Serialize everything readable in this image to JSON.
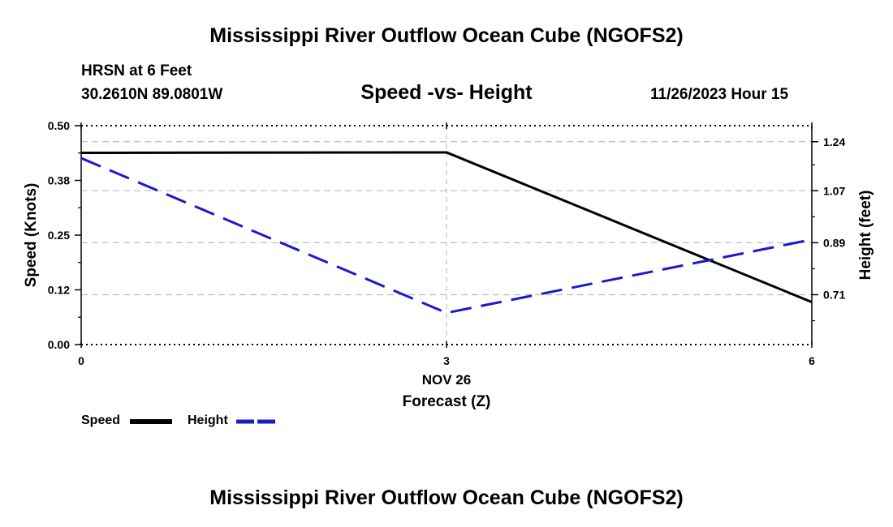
{
  "title": "Mississippi River Outflow Ocean Cube (NGOFS2)",
  "station": "HRSN at 6 Feet",
  "coordinates": "30.2610N  89.0801W",
  "datetime": "11/26/2023 Hour 15",
  "colors": {
    "speed": "#000000",
    "height": "#1a1acc",
    "grid": "#bdbdbd"
  },
  "chart_data": {
    "type": "line",
    "title": "Speed -vs- Height",
    "xlabel": "Forecast (Z)",
    "x_date_label": "NOV 26",
    "x": [
      0,
      3,
      6
    ],
    "xlim": [
      0,
      6
    ],
    "xticks": [
      "0",
      "3",
      "6"
    ],
    "ylabel_left": "Speed (Knots)",
    "ylim_left": [
      0,
      0.5
    ],
    "yticks_left": [
      "0.00",
      "0.12",
      "0.25",
      "0.38",
      "0.50"
    ],
    "ylabel_right": "Height (feet)",
    "ylim_right": [
      0.5372,
      1.2955
    ],
    "yticks_right": [
      {
        "value": 0.71,
        "label": "0.71"
      },
      {
        "value": 0.89,
        "label": "0.89"
      },
      {
        "value": 1.07,
        "label": "1.07"
      },
      {
        "value": 1.24,
        "label": "1.24"
      }
    ],
    "grid": true,
    "series": [
      {
        "name": "Speed",
        "axis": "left",
        "style": "solid",
        "values": [
          0.438,
          0.439,
          0.097
        ]
      },
      {
        "name": "Height",
        "axis": "right",
        "style": "dashed",
        "values": [
          1.183,
          0.647,
          0.901
        ]
      }
    ]
  },
  "legend": {
    "speed_label": "Speed",
    "height_label": "Height"
  }
}
